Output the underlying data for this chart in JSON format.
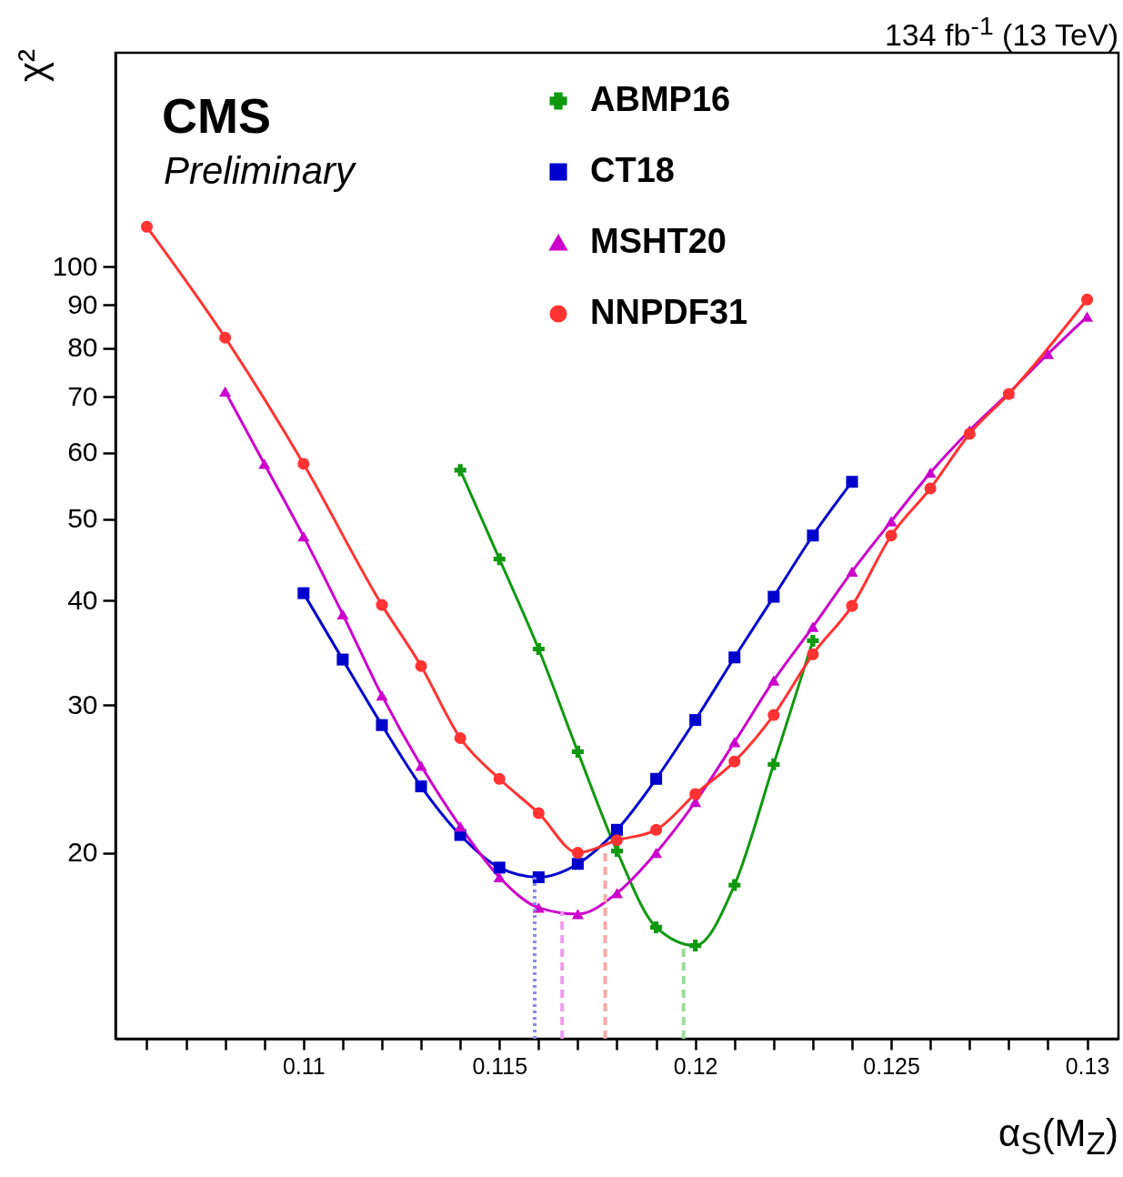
{
  "chart_data": {
    "type": "line",
    "xlabel": "α$_{S}$(M$_{Z}$)",
    "ylabel": "χ²",
    "log": "y",
    "legend": "top",
    "annotations": [
      "CMS",
      "Preliminary",
      "134 fb$^{-1}$ (13 TeV)"
    ],
    "xlim": [
      0.1052,
      0.1308
    ],
    "ylim": [
      12,
      180
    ],
    "xticks": [
      {
        "value": 0.106,
        "label": null
      },
      {
        "value": 0.107,
        "label": null
      },
      {
        "value": 0.108,
        "label": null
      },
      {
        "value": 0.109,
        "label": null
      },
      0.11,
      {
        "value": 0.111,
        "label": null
      },
      {
        "value": 0.112,
        "label": null
      },
      {
        "value": 0.113,
        "label": null
      },
      {
        "value": 0.114,
        "label": null
      },
      0.115,
      {
        "value": 0.116,
        "label": null
      },
      {
        "value": 0.117,
        "label": null
      },
      {
        "value": 0.118,
        "label": null
      },
      {
        "value": 0.119,
        "label": null
      },
      0.12,
      {
        "value": 0.121,
        "label": null
      },
      {
        "value": 0.122,
        "label": null
      },
      {
        "value": 0.123,
        "label": null
      },
      {
        "value": 0.124,
        "label": null
      },
      0.125,
      {
        "value": 0.126,
        "label": null
      },
      {
        "value": 0.127,
        "label": null
      },
      {
        "value": 0.128,
        "label": null
      },
      {
        "value": 0.129,
        "label": null
      },
      0.13
    ],
    "yticks": [
      20,
      30,
      40,
      50,
      60,
      70,
      80,
      90,
      100
    ],
    "series": [
      {
        "name": "ABMP16",
        "color": "#109910",
        "marker": "cross",
        "x": [
          0.114,
          0.115,
          0.116,
          0.117,
          0.118,
          0.119,
          0.12,
          0.121,
          0.122,
          0.123
        ],
        "values": [
          57.2,
          44.8,
          35.0,
          26.4,
          20.1,
          16.3,
          15.5,
          18.3,
          25.5,
          35.8
        ]
      },
      {
        "name": "CT18",
        "color": "#0000cc",
        "marker": "square",
        "x": [
          0.11,
          0.111,
          0.112,
          0.113,
          0.114,
          0.115,
          0.116,
          0.117,
          0.118,
          0.119,
          0.12,
          0.121,
          0.122,
          0.123,
          0.124
        ],
        "values": [
          40.8,
          34.0,
          28.4,
          24.0,
          21.0,
          19.2,
          18.7,
          19.4,
          21.3,
          24.5,
          28.8,
          34.2,
          40.4,
          47.8,
          55.4
        ]
      },
      {
        "name": "MSHT20",
        "color": "#cc00cc",
        "marker": "triangle",
        "x": [
          0.108,
          0.109,
          0.11,
          0.111,
          0.112,
          0.113,
          0.114,
          0.115,
          0.116,
          0.117,
          0.118,
          0.119,
          0.12,
          0.121,
          0.122,
          0.123,
          0.124,
          0.125,
          0.126,
          0.127,
          0.128,
          0.129,
          0.13
        ],
        "values": [
          71.0,
          58.2,
          47.7,
          38.5,
          30.8,
          25.4,
          21.5,
          18.7,
          17.2,
          16.9,
          17.9,
          20.0,
          23.0,
          27.1,
          32.1,
          37.2,
          43.3,
          49.7,
          56.8,
          63.8,
          70.7,
          78.7,
          87.2
        ]
      },
      {
        "name": "NNPDF31",
        "color": "#ff3333",
        "marker": "circle",
        "x": [
          0.106,
          0.108,
          0.11,
          0.112,
          0.113,
          0.114,
          0.115,
          0.116,
          0.117,
          0.118,
          0.119,
          0.12,
          0.121,
          0.122,
          0.123,
          0.124,
          0.125,
          0.126,
          0.127,
          0.128,
          0.13
        ],
        "values": [
          111.6,
          82.3,
          58.2,
          39.5,
          33.4,
          27.4,
          24.5,
          22.3,
          20.0,
          20.7,
          21.3,
          23.5,
          25.7,
          29.2,
          34.5,
          39.4,
          47.8,
          54.4,
          63.2,
          70.5,
          91.4
        ]
      },
      {
        "type": "line",
        "color": "#8c8cee",
        "marker": "none",
        "line_style": "dotted",
        "x": [
          0.1159,
          0.1159
        ],
        "values": [
          12,
          18.7
        ]
      },
      {
        "type": "line",
        "color": "#ee9cee",
        "marker": "none",
        "line_style": "dashed",
        "x": [
          0.1166,
          0.1166
        ],
        "values": [
          12,
          17.0
        ]
      },
      {
        "type": "line",
        "color": "#f7a8a8",
        "marker": "none",
        "line_style": "dashed",
        "x": [
          0.1177,
          0.1177
        ],
        "values": [
          12,
          20.0
        ]
      },
      {
        "type": "line",
        "color": "#9cdc9c",
        "marker": "none",
        "line_style": "dashed",
        "x": [
          0.1197,
          0.1197
        ],
        "values": [
          12,
          15.6
        ]
      }
    ]
  }
}
